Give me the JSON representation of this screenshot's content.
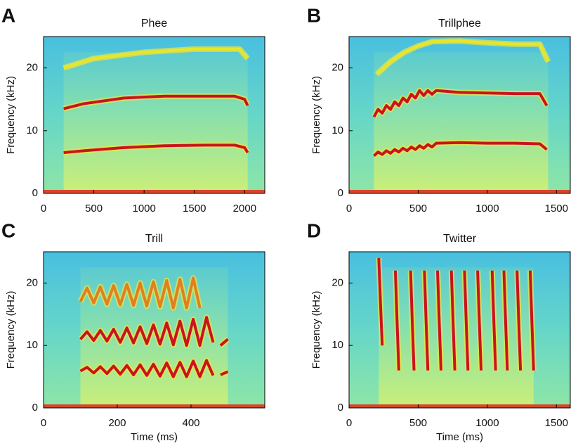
{
  "chart_data": [
    {
      "type": "spectrogram",
      "panel": "A",
      "title": "Phee",
      "ylabel": "Frequency (kHz)",
      "xlim": [
        0,
        2200
      ],
      "xticks": [
        0,
        500,
        1000,
        1500,
        2000
      ],
      "ylim": [
        0,
        25
      ],
      "yticks": [
        0,
        10,
        20
      ],
      "series": [
        {
          "color": "#c8141e",
          "x": [
            200,
            400,
            800,
            1200,
            1600,
            1900,
            2000,
            2030
          ],
          "values": [
            6.5,
            6.8,
            7.3,
            7.6,
            7.7,
            7.7,
            7.3,
            6.5
          ]
        },
        {
          "color": "#c8141e",
          "x": [
            200,
            400,
            800,
            1200,
            1600,
            1900,
            2000,
            2030
          ],
          "values": [
            13.5,
            14.3,
            15.2,
            15.5,
            15.5,
            15.5,
            15,
            14
          ]
        },
        {
          "color": "#e8e62a",
          "x": [
            200,
            500,
            1000,
            1500,
            1950,
            2030
          ],
          "values": [
            20,
            21.5,
            22.5,
            23,
            23,
            21.5
          ]
        }
      ]
    },
    {
      "type": "spectrogram",
      "panel": "B",
      "title": "Trillphee",
      "ylabel": "Frequency (kHz)",
      "xlim": [
        0,
        1600
      ],
      "xticks": [
        0,
        500,
        1000,
        1500
      ],
      "ylim": [
        0,
        25
      ],
      "yticks": [
        0,
        10,
        20
      ],
      "series": [
        {
          "color": "#c8141e",
          "x": [
            180,
            210,
            240,
            270,
            300,
            330,
            360,
            390,
            420,
            450,
            480,
            510,
            540,
            570,
            600,
            630,
            800,
            1000,
            1200,
            1380,
            1430
          ],
          "values": [
            6.0,
            6.6,
            6.2,
            6.8,
            6.4,
            7.0,
            6.6,
            7.2,
            6.8,
            7.4,
            7.0,
            7.6,
            7.2,
            7.8,
            7.4,
            8.0,
            8.1,
            8.0,
            8.0,
            7.9,
            7.0
          ]
        },
        {
          "color": "#c8141e",
          "x": [
            180,
            210,
            240,
            270,
            300,
            330,
            360,
            390,
            420,
            450,
            480,
            510,
            540,
            570,
            600,
            630,
            800,
            1000,
            1200,
            1380,
            1430
          ],
          "values": [
            12.2,
            13.4,
            12.8,
            14.0,
            13.4,
            14.6,
            14.0,
            15.2,
            14.6,
            15.8,
            15.2,
            16.4,
            15.6,
            16.4,
            15.8,
            16.4,
            16.1,
            16.0,
            15.9,
            15.9,
            14.0
          ]
        },
        {
          "color": "#e8e62a",
          "x": [
            200,
            300,
            400,
            500,
            600,
            800,
            1000,
            1200,
            1380,
            1440
          ],
          "values": [
            19,
            21,
            22.5,
            23.5,
            24.2,
            24.3,
            24.0,
            23.8,
            23.8,
            21
          ]
        }
      ]
    },
    {
      "type": "spectrogram",
      "panel": "C",
      "title": "Trill",
      "xlabel": "Time (ms)",
      "ylabel": "Frequency (kHz)",
      "xlim": [
        0,
        600
      ],
      "xticks": [
        0,
        200,
        400
      ],
      "ylim": [
        0,
        25
      ],
      "yticks": [
        0,
        10,
        20
      ],
      "series": [
        {
          "color": "#c8141e",
          "x": [
            100,
            118,
            136,
            154,
            172,
            190,
            208,
            226,
            244,
            262,
            280,
            298,
            316,
            334,
            352,
            370,
            388,
            406,
            424,
            442,
            460,
            null,
            480,
            500
          ],
          "values": [
            5.9,
            6.5,
            5.6,
            6.6,
            5.5,
            6.7,
            5.4,
            6.8,
            5.3,
            6.9,
            5.2,
            7.0,
            5.1,
            7.2,
            5.0,
            7.3,
            5.0,
            7.5,
            5.0,
            7.6,
            5.2,
            null,
            5.3,
            5.8
          ]
        },
        {
          "color": "#c8141e",
          "x": [
            100,
            118,
            136,
            154,
            172,
            190,
            208,
            226,
            244,
            262,
            280,
            298,
            316,
            334,
            352,
            370,
            388,
            406,
            424,
            442,
            460,
            null,
            480,
            500
          ],
          "values": [
            11.0,
            12.2,
            10.8,
            12.4,
            10.7,
            12.6,
            10.5,
            12.8,
            10.4,
            13.0,
            10.3,
            13.3,
            10.2,
            13.6,
            10.1,
            13.9,
            10.0,
            14.2,
            10.0,
            14.5,
            10.5,
            null,
            10.0,
            11.0
          ]
        },
        {
          "color": "#e08020",
          "x": [
            100,
            118,
            136,
            154,
            172,
            190,
            208,
            226,
            244,
            262,
            280,
            298,
            316,
            334,
            352,
            370,
            388,
            406,
            424
          ],
          "values": [
            17.0,
            19.2,
            16.8,
            19.4,
            16.6,
            19.6,
            16.5,
            19.8,
            16.4,
            20.0,
            16.3,
            20.2,
            16.2,
            20.4,
            16.0,
            20.6,
            16.0,
            20.8,
            16.0
          ]
        }
      ]
    },
    {
      "type": "spectrogram",
      "panel": "D",
      "title": "Twitter",
      "xlabel": "Time (ms)",
      "ylabel": "Frequency (kHz)",
      "xlim": [
        0,
        1600
      ],
      "xticks": [
        0,
        500,
        1000,
        1500
      ],
      "ylim": [
        0,
        25
      ],
      "yticks": [
        0,
        10,
        20
      ],
      "series": [
        {
          "color": "#c8141e",
          "x": [
            215,
            227,
            240,
            null,
            335,
            347,
            360,
            null,
            445,
            457,
            470,
            null,
            545,
            557,
            570,
            null,
            640,
            652,
            665,
            null,
            740,
            752,
            765,
            null,
            835,
            847,
            860,
            null,
            930,
            942,
            955,
            null,
            1035,
            1047,
            1060,
            null,
            1120,
            1132,
            1145,
            null,
            1215,
            1227,
            1240,
            null,
            1310,
            1322,
            1335
          ],
          "values": [
            24,
            17,
            10,
            null,
            22,
            14,
            6,
            null,
            22,
            14,
            6,
            null,
            22,
            14,
            6,
            null,
            22,
            14,
            6,
            null,
            22,
            14,
            6,
            null,
            22,
            14,
            6,
            null,
            22,
            14,
            6,
            null,
            22,
            14,
            6,
            null,
            22,
            14,
            6,
            null,
            22,
            14,
            6,
            null,
            22,
            14,
            6
          ]
        }
      ]
    }
  ]
}
